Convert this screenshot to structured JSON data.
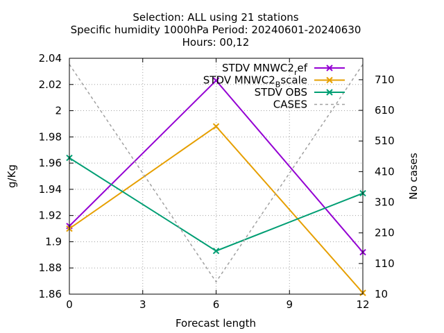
{
  "chart_data": {
    "type": "line",
    "title_lines": [
      "Selection: ALL using    21 stations",
      "Specific humidity 1000hPa   Period: 20240601-20240630",
      "Hours: 00,12"
    ],
    "xlabel": "Forecast length",
    "ylabel": "g/Kg",
    "y2label": "No cases",
    "x": [
      0,
      6,
      12
    ],
    "xlim": [
      0,
      12
    ],
    "xticks": [
      0,
      3,
      6,
      9,
      12
    ],
    "ylim": [
      1.86,
      2.04
    ],
    "yticks": [
      "1.86",
      "1.88",
      "1.9",
      "1.92",
      "1.94",
      "1.96",
      "1.98",
      "2",
      "2.02",
      "2.04"
    ],
    "y2lim": [
      10,
      780
    ],
    "y2ticks": [
      10,
      110,
      210,
      310,
      410,
      510,
      610,
      710
    ],
    "grid": true,
    "legend_position": "top-right",
    "series": [
      {
        "name_main": "STDV MNWC2",
        "name_sub": "r",
        "name_tail": "ef",
        "axis": "y",
        "color": "#9400d3",
        "marker": "x",
        "values": [
          1.912,
          2.023,
          1.892
        ]
      },
      {
        "name_main": "STDV MNWC2",
        "name_sub": "B",
        "name_tail": "scale",
        "axis": "y",
        "color": "#e69f00",
        "marker": "x",
        "values": [
          1.91,
          1.988,
          1.861
        ]
      },
      {
        "name_main": "STDV OBS",
        "name_sub": "",
        "name_tail": "",
        "axis": "y",
        "color": "#009e73",
        "marker": "x",
        "values": [
          1.964,
          1.893,
          1.937
        ]
      },
      {
        "name_main": "CASES",
        "name_sub": "",
        "name_tail": "",
        "axis": "y2",
        "color": "#a0a0a0",
        "marker": "none",
        "dashed": true,
        "values": [
          760,
          50,
          760
        ]
      }
    ]
  }
}
